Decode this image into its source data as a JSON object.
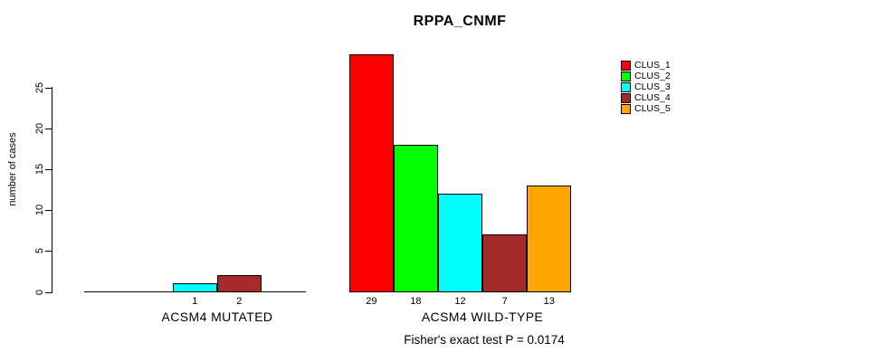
{
  "title": "RPPA_CNMF",
  "chart_data": {
    "type": "bar",
    "title": "RPPA_CNMF",
    "xlabel": "",
    "ylabel": "number of cases",
    "ylim": [
      0,
      29
    ],
    "yticks": [
      0,
      5,
      10,
      15,
      20,
      25
    ],
    "grid": false,
    "legend_position": "top-right",
    "legend": [
      {
        "label": "CLUS_1",
        "color": "#FF0000"
      },
      {
        "label": "CLUS_2",
        "color": "#00FF00"
      },
      {
        "label": "CLUS_3",
        "color": "#00FFFF"
      },
      {
        "label": "CLUS_4",
        "color": "#A52A2A"
      },
      {
        "label": "CLUS_5",
        "color": "#FFA500"
      }
    ],
    "series_colors": [
      "#FF0000",
      "#00FF00",
      "#00FFFF",
      "#A52A2A",
      "#FFA500"
    ],
    "groups": [
      {
        "label": "ACSM4 MUTATED",
        "categories": [
          "CLUS_1",
          "CLUS_2",
          "CLUS_3",
          "CLUS_4",
          "CLUS_5"
        ],
        "values": [
          0,
          0,
          1,
          2,
          0
        ],
        "bar_labels": [
          "",
          "",
          "1",
          "2",
          ""
        ]
      },
      {
        "label": "ACSM4 WILD-TYPE",
        "categories": [
          "CLUS_1",
          "CLUS_2",
          "CLUS_3",
          "CLUS_4",
          "CLUS_5"
        ],
        "values": [
          29,
          18,
          12,
          7,
          13
        ],
        "bar_labels": [
          "29",
          "18",
          "12",
          "7",
          "13"
        ]
      }
    ],
    "annotation": "Fisher's exact test P = 0.0174"
  }
}
